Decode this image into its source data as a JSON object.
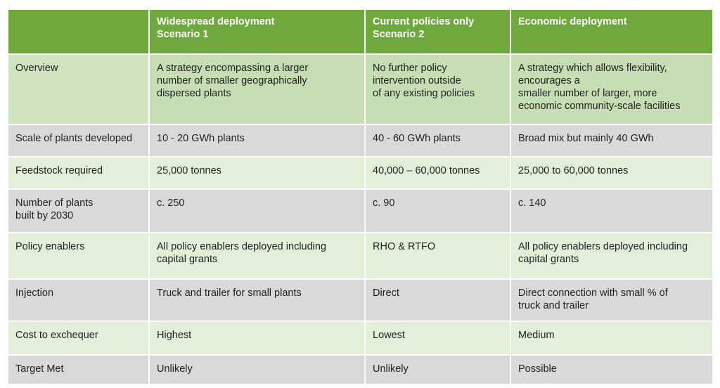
{
  "header": {
    "col0": "",
    "col1": "Widespread deployment\nScenario 1",
    "col2": "Current policies only\nScenario 2",
    "col3": "Economic deployment"
  },
  "rows": [
    {
      "label": "Overview",
      "c1": "A strategy encompassing a larger\nnumber of smaller geographically\ndispersed plants",
      "c2": "No further policy\nintervention outside\nof any existing policies",
      "c3": "A strategy which allows flexibility,\nencourages a\nsmaller number of larger, more\neconomic community-scale facilities"
    },
    {
      "label": "Scale of plants developed",
      "c1": "10 - 20 GWh plants",
      "c2": "40 - 60 GWh plants",
      "c3": "Broad mix but mainly 40 GWh"
    },
    {
      "label": "Feedstock required",
      "c1": "25,000 tonnes",
      "c2": "40,000 – 60,000 tonnes",
      "c3": "25,000 to 60,000 tonnes"
    },
    {
      "label": "Number of plants\nbuilt by 2030",
      "c1": "c. 250",
      "c2": "c. 90",
      "c3": "c. 140"
    },
    {
      "label": "Policy enablers",
      "c1": "All policy enablers deployed including\ncapital grants",
      "c2": "RHO & RTFO",
      "c3": "All policy enablers deployed including\ncapital grants"
    },
    {
      "label": "Injection",
      "c1": "Truck and trailer for small plants",
      "c2": "Direct",
      "c3": "Direct connection with small % of\ntruck and trailer"
    },
    {
      "label": "Cost to exchequer",
      "c1": "Highest",
      "c2": "Lowest",
      "c3": "Medium"
    },
    {
      "label": "Target Met",
      "c1": "Unlikely",
      "c2": "Unlikely",
      "c3": "Possible"
    }
  ],
  "colors": {
    "header": "#6fa93d",
    "row_green": "#e2efd9",
    "row_grey": "#d9d9d9",
    "overview": "#c5deb3"
  }
}
